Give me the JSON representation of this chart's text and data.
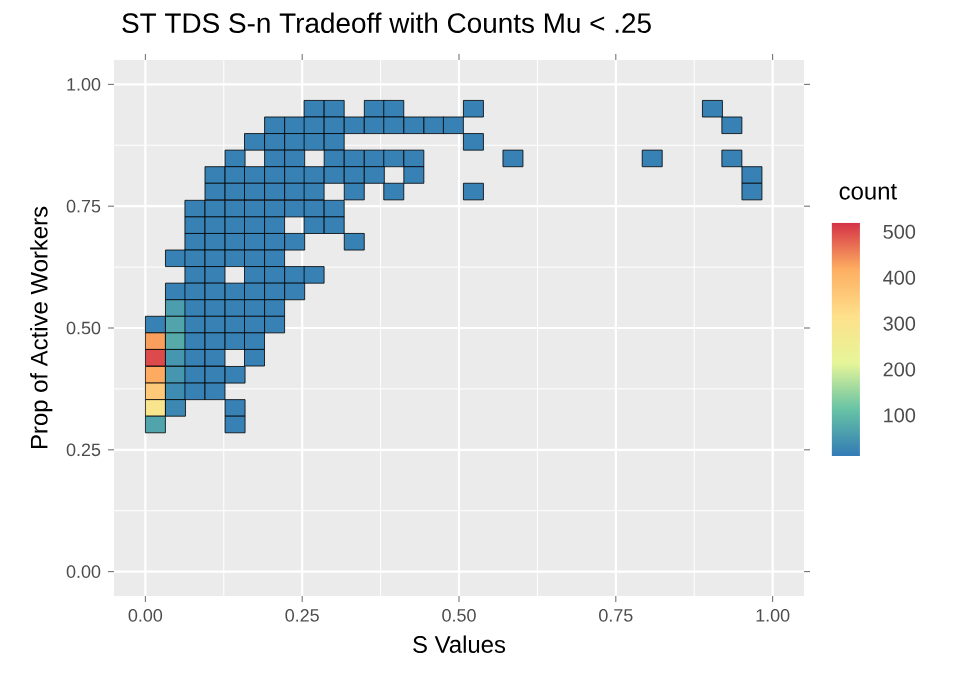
{
  "chart_data": {
    "type": "scatter",
    "title": "ST TDS S-n Tradeoff with Counts Mu < .25",
    "xlabel": "S Values",
    "ylabel": "Prop of Active Workers",
    "clabel": "count",
    "marker": "square",
    "grid": true,
    "xlim": [
      -0.05,
      1.05
    ],
    "ylim": [
      -0.05,
      1.05
    ],
    "xticks": [
      {
        "value": 0,
        "label": "0.00"
      },
      {
        "value": 0.25,
        "label": "0.25"
      },
      {
        "value": 0.5,
        "label": "0.50"
      },
      {
        "value": 0.75,
        "label": "0.75"
      },
      {
        "value": 1,
        "label": "1.00"
      }
    ],
    "yticks": [
      {
        "value": 0,
        "label": "0.00"
      },
      {
        "value": 0.25,
        "label": "0.25"
      },
      {
        "value": 0.5,
        "label": "0.50"
      },
      {
        "value": 0.75,
        "label": "0.75"
      },
      {
        "value": 1,
        "label": "1.00"
      }
    ],
    "clim": [
      10,
      520
    ],
    "cticks": [
      100,
      200,
      300,
      400,
      500
    ],
    "x": [
      0.269,
      0.301,
      0.365,
      0.396,
      0.523,
      0.904,
      0.206,
      0.238,
      0.269,
      0.301,
      0.333,
      0.365,
      0.396,
      0.428,
      0.46,
      0.491,
      0.935,
      0.174,
      0.206,
      0.238,
      0.269,
      0.301,
      0.523,
      0.143,
      0.206,
      0.238,
      0.301,
      0.333,
      0.365,
      0.396,
      0.428,
      0.586,
      0.808,
      0.935,
      0.111,
      0.143,
      0.174,
      0.206,
      0.238,
      0.269,
      0.301,
      0.333,
      0.365,
      0.428,
      0.967,
      0.111,
      0.143,
      0.174,
      0.206,
      0.238,
      0.269,
      0.333,
      0.396,
      0.523,
      0.967,
      0.079,
      0.111,
      0.143,
      0.174,
      0.206,
      0.238,
      0.269,
      0.301,
      0.079,
      0.111,
      0.143,
      0.174,
      0.206,
      0.269,
      0.301,
      0.079,
      0.111,
      0.143,
      0.174,
      0.206,
      0.238,
      0.333,
      0.048,
      0.079,
      0.111,
      0.143,
      0.174,
      0.206,
      0.079,
      0.111,
      0.174,
      0.206,
      0.238,
      0.269,
      0.048,
      0.079,
      0.111,
      0.143,
      0.174,
      0.206,
      0.238,
      0.048,
      0.079,
      0.111,
      0.143,
      0.174,
      0.206,
      0.016,
      0.048,
      0.079,
      0.111,
      0.143,
      0.174,
      0.206,
      0.016,
      0.048,
      0.079,
      0.111,
      0.143,
      0.174,
      0.016,
      0.048,
      0.079,
      0.111,
      0.174,
      0.016,
      0.048,
      0.079,
      0.111,
      0.143,
      0.016,
      0.048,
      0.079,
      0.111,
      0.016,
      0.048,
      0.143,
      0.016,
      0.143
    ],
    "values": [
      0.95,
      0.95,
      0.95,
      0.95,
      0.95,
      0.95,
      0.916,
      0.916,
      0.916,
      0.916,
      0.916,
      0.916,
      0.916,
      0.916,
      0.916,
      0.916,
      0.916,
      0.882,
      0.882,
      0.882,
      0.882,
      0.882,
      0.882,
      0.848,
      0.848,
      0.848,
      0.848,
      0.848,
      0.848,
      0.848,
      0.848,
      0.848,
      0.848,
      0.848,
      0.814,
      0.814,
      0.814,
      0.814,
      0.814,
      0.814,
      0.814,
      0.814,
      0.814,
      0.814,
      0.814,
      0.78,
      0.78,
      0.78,
      0.78,
      0.78,
      0.78,
      0.78,
      0.78,
      0.78,
      0.78,
      0.745,
      0.745,
      0.745,
      0.745,
      0.745,
      0.745,
      0.745,
      0.745,
      0.711,
      0.711,
      0.711,
      0.711,
      0.711,
      0.711,
      0.711,
      0.677,
      0.677,
      0.677,
      0.677,
      0.677,
      0.677,
      0.677,
      0.643,
      0.643,
      0.643,
      0.643,
      0.643,
      0.643,
      0.609,
      0.609,
      0.609,
      0.609,
      0.609,
      0.609,
      0.575,
      0.575,
      0.575,
      0.575,
      0.575,
      0.575,
      0.575,
      0.541,
      0.541,
      0.541,
      0.541,
      0.541,
      0.541,
      0.507,
      0.507,
      0.507,
      0.507,
      0.507,
      0.507,
      0.507,
      0.473,
      0.473,
      0.473,
      0.473,
      0.473,
      0.473,
      0.439,
      0.439,
      0.439,
      0.439,
      0.439,
      0.404,
      0.404,
      0.404,
      0.404,
      0.404,
      0.37,
      0.37,
      0.37,
      0.37,
      0.336,
      0.336,
      0.336,
      0.302,
      0.302
    ],
    "cvalues": [
      20,
      20,
      20,
      20,
      20,
      20,
      20,
      20,
      20,
      20,
      20,
      20,
      20,
      20,
      20,
      20,
      20,
      20,
      20,
      20,
      20,
      20,
      20,
      20,
      20,
      20,
      20,
      20,
      20,
      20,
      20,
      20,
      20,
      20,
      20,
      20,
      20,
      20,
      20,
      20,
      20,
      20,
      20,
      20,
      20,
      20,
      20,
      20,
      20,
      20,
      20,
      20,
      20,
      20,
      20,
      20,
      20,
      20,
      20,
      20,
      20,
      20,
      20,
      20,
      20,
      20,
      20,
      20,
      20,
      20,
      20,
      20,
      20,
      20,
      20,
      20,
      20,
      20,
      20,
      20,
      20,
      20,
      20,
      20,
      20,
      20,
      20,
      20,
      20,
      20,
      20,
      20,
      20,
      20,
      20,
      20,
      60,
      20,
      20,
      20,
      20,
      20,
      20,
      70,
      20,
      20,
      20,
      20,
      20,
      430,
      80,
      20,
      20,
      20,
      20,
      500,
      50,
      20,
      20,
      20,
      420,
      50,
      20,
      20,
      20,
      360,
      35,
      20,
      20,
      290,
      30,
      20,
      70,
      20
    ]
  }
}
